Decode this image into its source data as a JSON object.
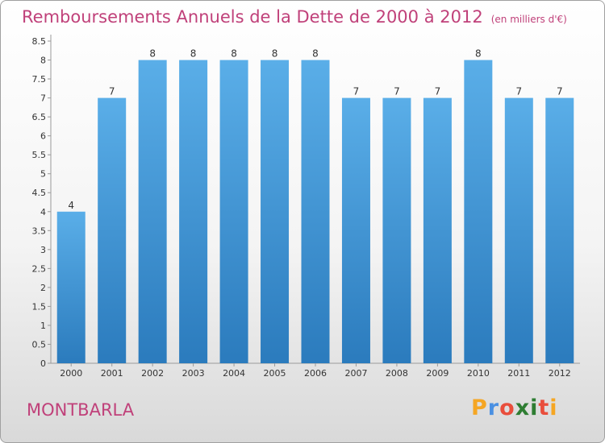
{
  "title": "Remboursements Annuels de la Dette de 2000 à 2012",
  "unit": "(en milliers d'€)",
  "commune": "MONTBARLA",
  "logo": {
    "letters": [
      "P",
      "r",
      "o",
      "x",
      "i",
      "t",
      "i"
    ],
    "colors": [
      "#f5a623",
      "#4a90e2",
      "#e94e3c",
      "#2e7d32",
      "#2e7d32",
      "#e94e3c",
      "#f5a623"
    ]
  },
  "colors": {
    "accent": "#c0417a",
    "bar_top": "#5aaee8",
    "bar_bottom": "#2b7bbd"
  },
  "chart_data": {
    "type": "bar",
    "categories": [
      "2000",
      "2001",
      "2002",
      "2003",
      "2004",
      "2005",
      "2006",
      "2007",
      "2008",
      "2009",
      "2010",
      "2011",
      "2012"
    ],
    "values": [
      4,
      7,
      8,
      8,
      8,
      8,
      8,
      7,
      7,
      7,
      8,
      7,
      7
    ],
    "data_labels": [
      "4",
      "7",
      "8",
      "8",
      "8",
      "8",
      "8",
      "7",
      "7",
      "7",
      "8",
      "7",
      "7"
    ],
    "y_ticks": [
      "0",
      "0.5",
      "1",
      "1.5",
      "2",
      "2.5",
      "3",
      "3.5",
      "4",
      "4.5",
      "5",
      "5.5",
      "6",
      "6.5",
      "7",
      "7.5",
      "8",
      "8.5"
    ],
    "ylim": [
      0,
      8.5
    ],
    "grid": false
  }
}
